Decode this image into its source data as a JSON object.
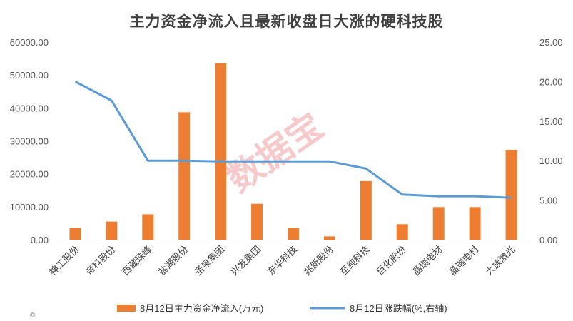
{
  "watermark": "数据宝",
  "copyright_symbol": "©",
  "chart_data": {
    "type": "bar",
    "title": "主力资金净流入且最新收盘日大涨的硬科技股",
    "categories": [
      "神工股份",
      "帝科股份",
      "西藏珠峰",
      "盐湖股份",
      "圣泉集团",
      "兴发集团",
      "东华科技",
      "兆新股份",
      "至纯科技",
      "巨化股份",
      "晶瑞电材",
      "晶瑞电材",
      "大族激光"
    ],
    "series": [
      {
        "name": "8月12日主力资金净流入(万元)",
        "type": "bar",
        "axis": "left",
        "color": "#ed7d31",
        "values": [
          3500,
          5500,
          7700,
          38700,
          53600,
          10900,
          3500,
          1000,
          17800,
          4700,
          9900,
          9900,
          27300
        ]
      },
      {
        "name": "8月12日涨跌幅(%,右轴)",
        "type": "line",
        "axis": "right",
        "color": "#5b9bd5",
        "values": [
          20.0,
          17.6,
          10.0,
          10.0,
          9.9,
          9.9,
          9.9,
          9.9,
          9.0,
          5.7,
          5.5,
          5.5,
          5.3
        ]
      }
    ],
    "y_left": {
      "min": 0,
      "max": 60000,
      "step": 10000,
      "tick_labels": [
        "0.00",
        "10000.00",
        "20000.00",
        "30000.00",
        "40000.00",
        "50000.00",
        "60000.00"
      ]
    },
    "y_right": {
      "min": 0,
      "max": 25,
      "step": 5,
      "tick_labels": [
        "0.00",
        "5.00",
        "10.00",
        "15.00",
        "20.00",
        "25.00"
      ]
    },
    "grid": false,
    "legend_position": "bottom"
  }
}
